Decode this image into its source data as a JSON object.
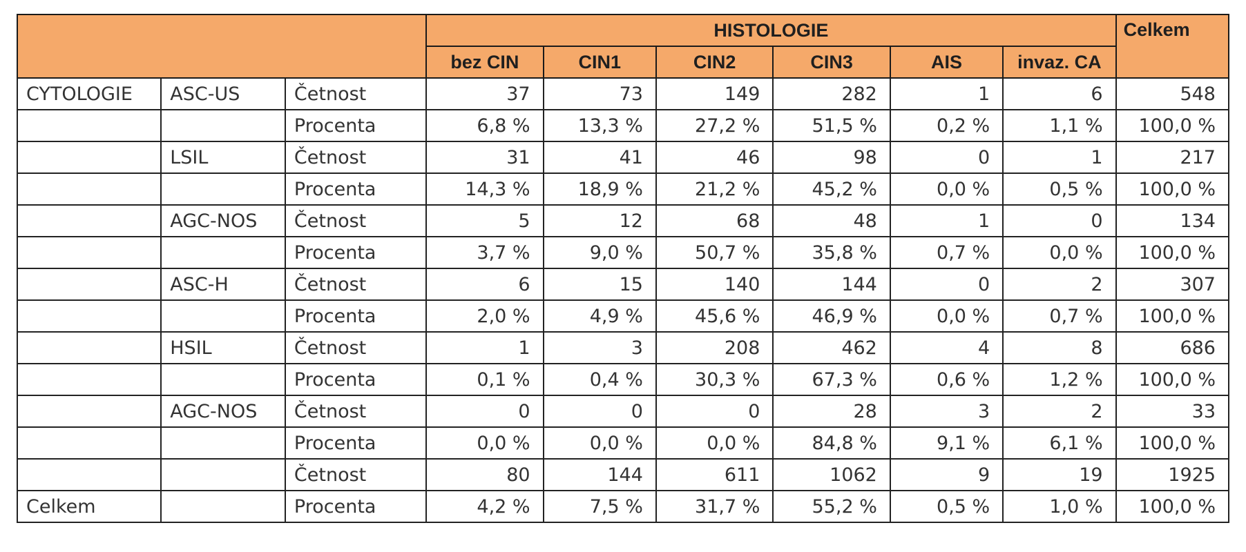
{
  "header": {
    "group_label": "HISTOLOGIE",
    "total_label": "Celkem",
    "columns": [
      "bez CIN",
      "CIN1",
      "CIN2",
      "CIN3",
      "AIS",
      "invaz. CA"
    ]
  },
  "rows": [
    {
      "group": "CYTOLOGIE",
      "category": "ASC-US",
      "measure": "Četnost",
      "values": [
        "37",
        "73",
        "149",
        "282",
        "1",
        "6"
      ],
      "total": "548"
    },
    {
      "group": "",
      "category": "",
      "measure": "Procenta",
      "values": [
        "6,8 %",
        "13,3 %",
        "27,2 %",
        "51,5 %",
        "0,2 %",
        "1,1 %"
      ],
      "total": "100,0 %"
    },
    {
      "group": "",
      "category": "LSIL",
      "measure": "Četnost",
      "values": [
        "31",
        "41",
        "46",
        "98",
        "0",
        "1"
      ],
      "total": "217"
    },
    {
      "group": "",
      "category": "",
      "measure": "Procenta",
      "values": [
        "14,3 %",
        "18,9 %",
        "21,2 %",
        "45,2 %",
        "0,0 %",
        "0,5 %"
      ],
      "total": "100,0 %"
    },
    {
      "group": "",
      "category": "AGC-NOS",
      "measure": "Četnost",
      "values": [
        "5",
        "12",
        "68",
        "48",
        "1",
        "0"
      ],
      "total": "134"
    },
    {
      "group": "",
      "category": "",
      "measure": "Procenta",
      "values": [
        "3,7 %",
        "9,0 %",
        "50,7 %",
        "35,8 %",
        "0,7 %",
        "0,0 %"
      ],
      "total": "100,0 %"
    },
    {
      "group": "",
      "category": "ASC-H",
      "measure": "Četnost",
      "values": [
        "6",
        "15",
        "140",
        "144",
        "0",
        "2"
      ],
      "total": "307"
    },
    {
      "group": "",
      "category": "",
      "measure": "Procenta",
      "values": [
        "2,0 %",
        "4,9 %",
        "45,6 %",
        "46,9 %",
        "0,0 %",
        "0,7 %"
      ],
      "total": "100,0 %"
    },
    {
      "group": "",
      "category": "HSIL",
      "measure": "Četnost",
      "values": [
        "1",
        "3",
        "208",
        "462",
        "4",
        "8"
      ],
      "total": "686"
    },
    {
      "group": "",
      "category": "",
      "measure": "Procenta",
      "values": [
        "0,1 %",
        "0,4 %",
        "30,3 %",
        "67,3 %",
        "0,6 %",
        "1,2 %"
      ],
      "total": "100,0 %"
    },
    {
      "group": "",
      "category": "AGC-NOS",
      "measure": "Četnost",
      "values": [
        "0",
        "0",
        "0",
        "28",
        "3",
        "2"
      ],
      "total": "33"
    },
    {
      "group": "",
      "category": "",
      "measure": "Procenta",
      "values": [
        "0,0 %",
        "0,0 %",
        "0,0 %",
        "84,8 %",
        "9,1 %",
        "6,1 %"
      ],
      "total": "100,0 %"
    },
    {
      "group": "",
      "category": "",
      "measure": "Četnost",
      "values": [
        "80",
        "144",
        "611",
        "1062",
        "9",
        "19"
      ],
      "total": "1925"
    },
    {
      "group": "Celkem",
      "category": "",
      "measure": "Procenta",
      "values": [
        "4,2 %",
        "7,5 %",
        "31,7 %",
        "55,2 %",
        "0,5 %",
        "1,0 %"
      ],
      "total": "100,0 %"
    }
  ],
  "colors": {
    "header_bg": "#f5a96a",
    "border": "#1a1a1a",
    "text": "#333333"
  }
}
